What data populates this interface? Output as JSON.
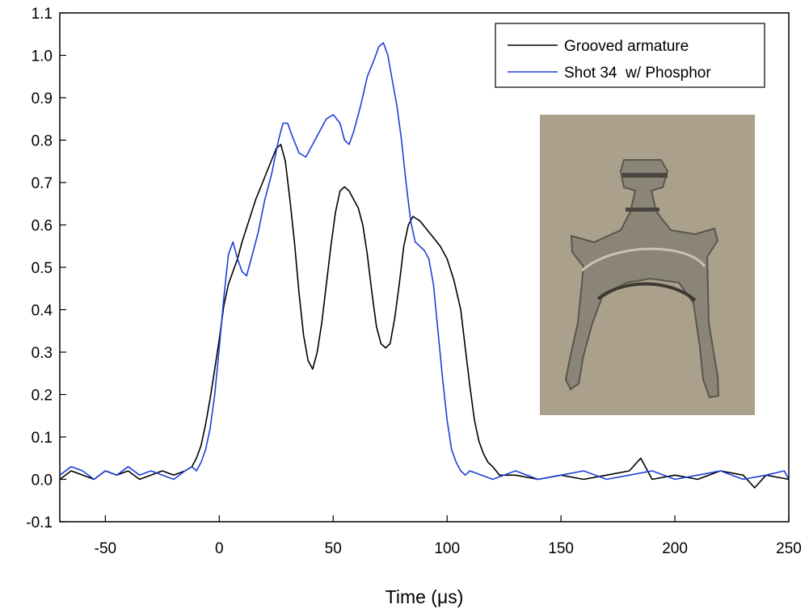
{
  "chart_data": {
    "type": "line",
    "title": "",
    "xlabel": "Time (μs)",
    "ylabel": "",
    "xlim": [
      -70,
      250
    ],
    "ylim": [
      -0.1,
      1.1
    ],
    "x_ticks": [
      "-50",
      "0",
      "50",
      "100",
      "150",
      "200",
      "250"
    ],
    "y_ticks": [
      "-0.1",
      "0.0",
      "0.1",
      "0.2",
      "0.3",
      "0.4",
      "0.5",
      "0.6",
      "0.7",
      "0.8",
      "0.9",
      "1.0",
      "1.1"
    ],
    "grid": false,
    "legend_position": "top-right",
    "series": [
      {
        "name": "Grooved armature",
        "color": "#000000",
        "points": [
          [
            -70,
            0.0
          ],
          [
            -65,
            0.02
          ],
          [
            -60,
            0.01
          ],
          [
            -55,
            0.0
          ],
          [
            -50,
            0.02
          ],
          [
            -45,
            0.01
          ],
          [
            -40,
            0.02
          ],
          [
            -35,
            0.0
          ],
          [
            -30,
            0.01
          ],
          [
            -25,
            0.02
          ],
          [
            -20,
            0.01
          ],
          [
            -15,
            0.02
          ],
          [
            -12,
            0.03
          ],
          [
            -10,
            0.05
          ],
          [
            -8,
            0.08
          ],
          [
            -6,
            0.13
          ],
          [
            -4,
            0.19
          ],
          [
            -2,
            0.26
          ],
          [
            0,
            0.33
          ],
          [
            2,
            0.41
          ],
          [
            4,
            0.46
          ],
          [
            6,
            0.49
          ],
          [
            8,
            0.52
          ],
          [
            10,
            0.56
          ],
          [
            13,
            0.61
          ],
          [
            16,
            0.66
          ],
          [
            19,
            0.7
          ],
          [
            22,
            0.74
          ],
          [
            25,
            0.78
          ],
          [
            27,
            0.79
          ],
          [
            29,
            0.75
          ],
          [
            31,
            0.66
          ],
          [
            33,
            0.56
          ],
          [
            35,
            0.44
          ],
          [
            37,
            0.34
          ],
          [
            39,
            0.28
          ],
          [
            41,
            0.26
          ],
          [
            43,
            0.3
          ],
          [
            45,
            0.37
          ],
          [
            47,
            0.46
          ],
          [
            49,
            0.55
          ],
          [
            51,
            0.63
          ],
          [
            53,
            0.68
          ],
          [
            55,
            0.69
          ],
          [
            57,
            0.68
          ],
          [
            59,
            0.66
          ],
          [
            61,
            0.64
          ],
          [
            63,
            0.6
          ],
          [
            65,
            0.53
          ],
          [
            67,
            0.44
          ],
          [
            69,
            0.36
          ],
          [
            71,
            0.32
          ],
          [
            73,
            0.31
          ],
          [
            75,
            0.32
          ],
          [
            77,
            0.38
          ],
          [
            79,
            0.46
          ],
          [
            81,
            0.55
          ],
          [
            83,
            0.6
          ],
          [
            85,
            0.62
          ],
          [
            88,
            0.61
          ],
          [
            91,
            0.59
          ],
          [
            94,
            0.57
          ],
          [
            97,
            0.55
          ],
          [
            100,
            0.52
          ],
          [
            103,
            0.47
          ],
          [
            106,
            0.4
          ],
          [
            108,
            0.31
          ],
          [
            110,
            0.22
          ],
          [
            112,
            0.14
          ],
          [
            114,
            0.09
          ],
          [
            116,
            0.06
          ],
          [
            118,
            0.04
          ],
          [
            120,
            0.03
          ],
          [
            123,
            0.01
          ],
          [
            130,
            0.01
          ],
          [
            140,
            0.0
          ],
          [
            150,
            0.01
          ],
          [
            160,
            0.0
          ],
          [
            170,
            0.01
          ],
          [
            180,
            0.02
          ],
          [
            185,
            0.05
          ],
          [
            190,
            0.0
          ],
          [
            200,
            0.01
          ],
          [
            210,
            0.0
          ],
          [
            220,
            0.02
          ],
          [
            230,
            0.01
          ],
          [
            235,
            -0.02
          ],
          [
            240,
            0.01
          ],
          [
            250,
            0.0
          ]
        ]
      },
      {
        "name": "Shot 34  w/ Phosphor",
        "color": "#1f3fd6",
        "points": [
          [
            -70,
            0.01
          ],
          [
            -65,
            0.03
          ],
          [
            -60,
            0.02
          ],
          [
            -55,
            0.0
          ],
          [
            -50,
            0.02
          ],
          [
            -45,
            0.01
          ],
          [
            -40,
            0.03
          ],
          [
            -35,
            0.01
          ],
          [
            -30,
            0.02
          ],
          [
            -25,
            0.01
          ],
          [
            -20,
            0.0
          ],
          [
            -15,
            0.02
          ],
          [
            -12,
            0.03
          ],
          [
            -10,
            0.02
          ],
          [
            -8,
            0.04
          ],
          [
            -6,
            0.07
          ],
          [
            -4,
            0.12
          ],
          [
            -2,
            0.2
          ],
          [
            0,
            0.31
          ],
          [
            2,
            0.43
          ],
          [
            4,
            0.53
          ],
          [
            6,
            0.56
          ],
          [
            8,
            0.52
          ],
          [
            10,
            0.49
          ],
          [
            12,
            0.48
          ],
          [
            14,
            0.52
          ],
          [
            17,
            0.58
          ],
          [
            20,
            0.66
          ],
          [
            23,
            0.72
          ],
          [
            26,
            0.8
          ],
          [
            28,
            0.84
          ],
          [
            30,
            0.84
          ],
          [
            32,
            0.81
          ],
          [
            35,
            0.77
          ],
          [
            38,
            0.76
          ],
          [
            41,
            0.79
          ],
          [
            44,
            0.82
          ],
          [
            47,
            0.85
          ],
          [
            50,
            0.86
          ],
          [
            53,
            0.84
          ],
          [
            55,
            0.8
          ],
          [
            57,
            0.79
          ],
          [
            59,
            0.82
          ],
          [
            62,
            0.88
          ],
          [
            65,
            0.95
          ],
          [
            68,
            0.99
          ],
          [
            70,
            1.02
          ],
          [
            72,
            1.03
          ],
          [
            74,
            1.0
          ],
          [
            76,
            0.94
          ],
          [
            78,
            0.88
          ],
          [
            80,
            0.8
          ],
          [
            82,
            0.7
          ],
          [
            84,
            0.61
          ],
          [
            86,
            0.56
          ],
          [
            88,
            0.55
          ],
          [
            90,
            0.54
          ],
          [
            92,
            0.52
          ],
          [
            94,
            0.46
          ],
          [
            96,
            0.35
          ],
          [
            98,
            0.24
          ],
          [
            100,
            0.14
          ],
          [
            102,
            0.07
          ],
          [
            104,
            0.04
          ],
          [
            106,
            0.02
          ],
          [
            108,
            0.01
          ],
          [
            110,
            0.02
          ],
          [
            115,
            0.01
          ],
          [
            120,
            0.0
          ],
          [
            130,
            0.02
          ],
          [
            140,
            0.0
          ],
          [
            150,
            0.01
          ],
          [
            160,
            0.02
          ],
          [
            170,
            0.0
          ],
          [
            180,
            0.01
          ],
          [
            190,
            0.02
          ],
          [
            200,
            0.0
          ],
          [
            210,
            0.01
          ],
          [
            220,
            0.02
          ],
          [
            230,
            0.0
          ],
          [
            240,
            0.01
          ],
          [
            248,
            0.02
          ],
          [
            250,
            0.0
          ]
        ]
      }
    ]
  }
}
